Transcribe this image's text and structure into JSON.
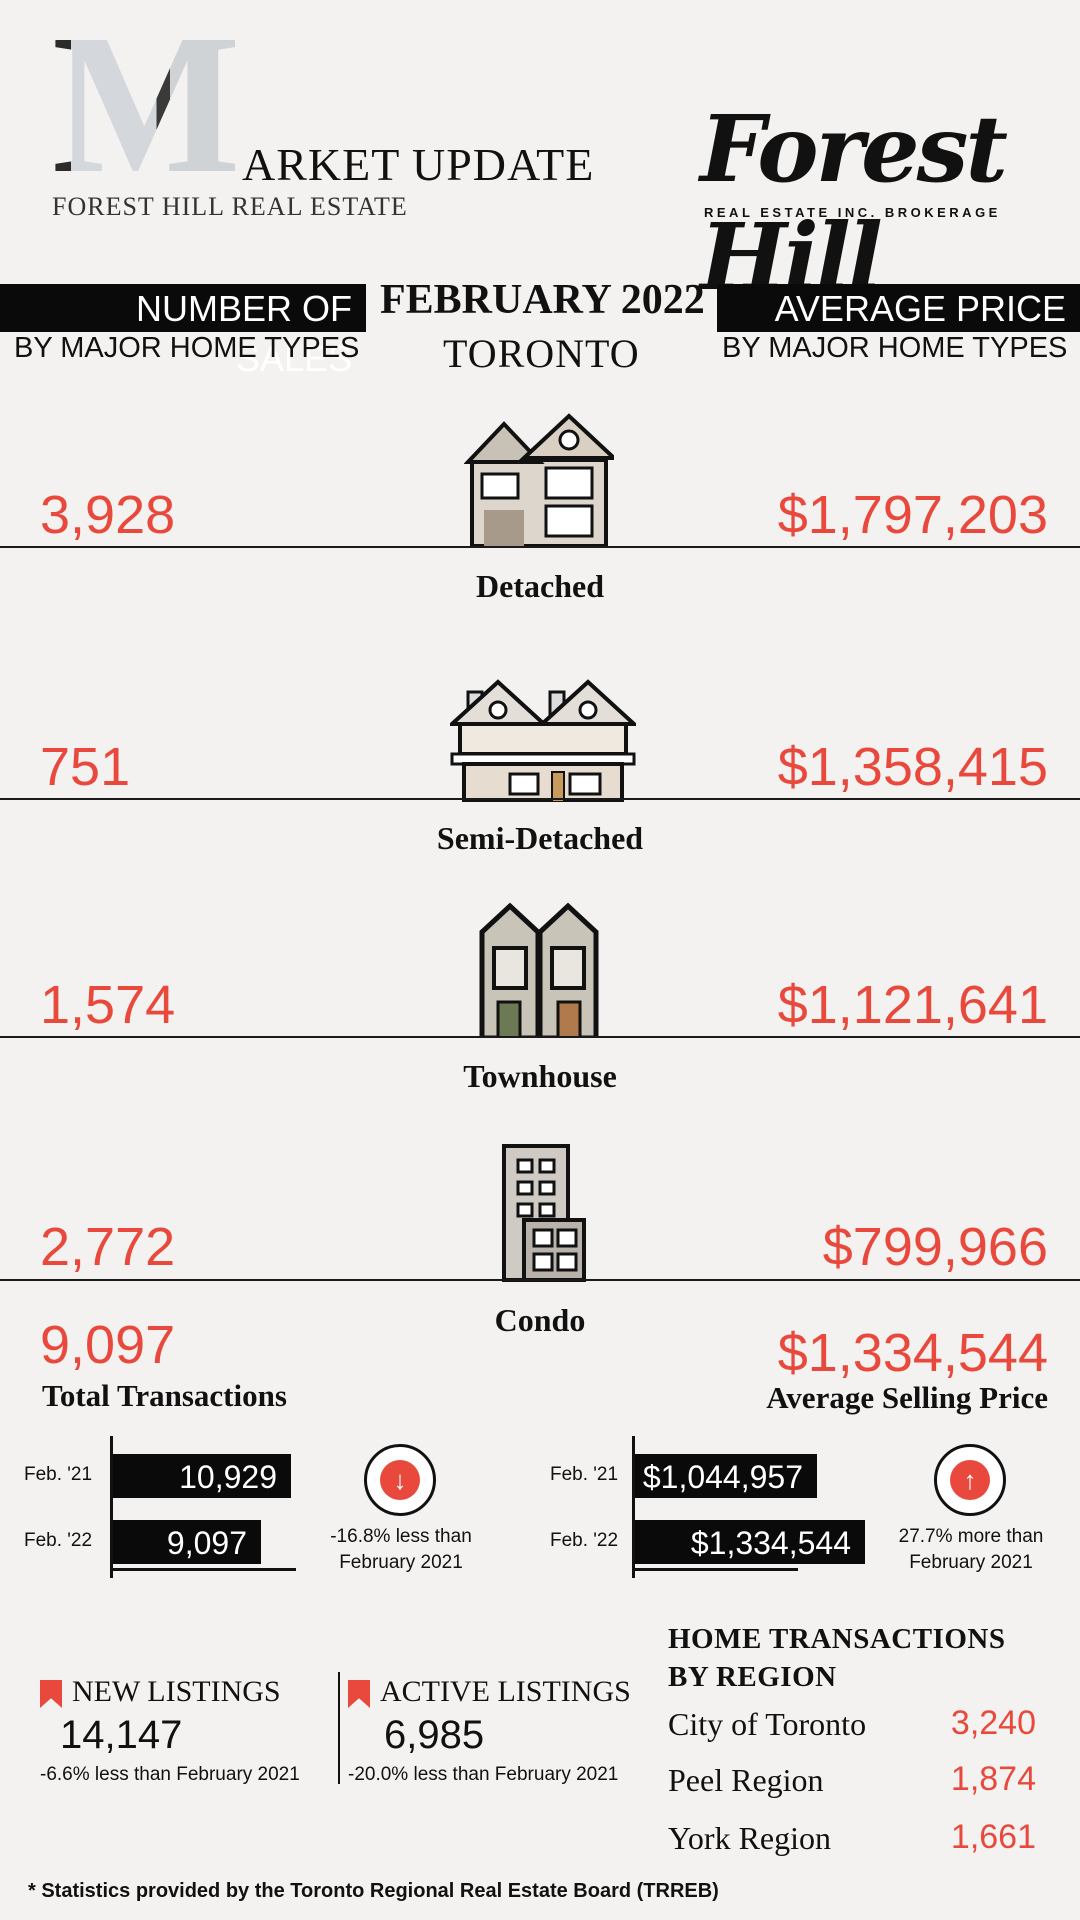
{
  "header": {
    "logo_letter": "M",
    "logo_title": "ARKET UPDATE",
    "logo_subtitle": "FOREST HILL REAL ESTATE",
    "brand_name": "Forest Hill",
    "brand_tagline": "REAL ESTATE INC. BROKERAGE"
  },
  "left_header": {
    "title": "NUMBER OF SALES",
    "subtitle": "BY MAJOR HOME TYPES"
  },
  "center_header": {
    "date": "FEBRUARY 2022",
    "city": "TORONTO"
  },
  "right_header": {
    "title": "AVERAGE PRICE",
    "subtitle": "BY MAJOR HOME TYPES"
  },
  "home_types": [
    {
      "label": "Detached",
      "sales": "3,928",
      "price": "$1,797,203",
      "icon": "detached-house-icon"
    },
    {
      "label": "Semi-Detached",
      "sales": "751",
      "price": "$1,358,415",
      "icon": "semi-detached-house-icon"
    },
    {
      "label": "Townhouse",
      "sales": "1,574",
      "price": "$1,121,641",
      "icon": "townhouse-icon"
    },
    {
      "label": "Condo",
      "sales": "2,772",
      "price": "$799,966",
      "icon": "condo-building-icon"
    }
  ],
  "totals": {
    "transactions_value": "9,097",
    "transactions_label": "Total Transactions",
    "avg_price_value": "$1,334,544",
    "avg_price_label": "Average Selling Price"
  },
  "chart_data": [
    {
      "type": "bar",
      "categories": [
        "Feb. '21",
        "Feb. '22"
      ],
      "values": [
        10929,
        9097
      ],
      "value_labels": [
        "10,929",
        "9,097"
      ],
      "change_note_line1": "-16.8% less than",
      "change_note_line2": "February 2021",
      "direction": "down"
    },
    {
      "type": "bar",
      "categories": [
        "Feb. '21",
        "Feb. '22"
      ],
      "values": [
        1044957,
        1334544
      ],
      "value_labels": [
        "$1,044,957",
        "$1,334,544"
      ],
      "change_note_line1": "27.7% more than",
      "change_note_line2": "February 2021",
      "direction": "up"
    }
  ],
  "listings": {
    "new": {
      "title": "NEW LISTINGS",
      "value": "14,147",
      "note": "-6.6% less than February 2021"
    },
    "active": {
      "title": "ACTIVE LISTINGS",
      "value": "6,985",
      "note": "-20.0% less than February 2021"
    }
  },
  "regions": {
    "title_line1": "HOME TRANSACTIONS",
    "title_line2": "BY REGION",
    "items": [
      {
        "name": "City of Toronto",
        "value": "3,240"
      },
      {
        "name": "Peel Region",
        "value": "1,874"
      },
      {
        "name": "York Region",
        "value": "1,661"
      }
    ]
  },
  "footnote": "* Statistics provided by the Toronto Regional Real Estate Board (TRREB)",
  "colors": {
    "accent": "#e8493c",
    "dark": "#0a0a0a",
    "background": "#f3f2f0"
  }
}
